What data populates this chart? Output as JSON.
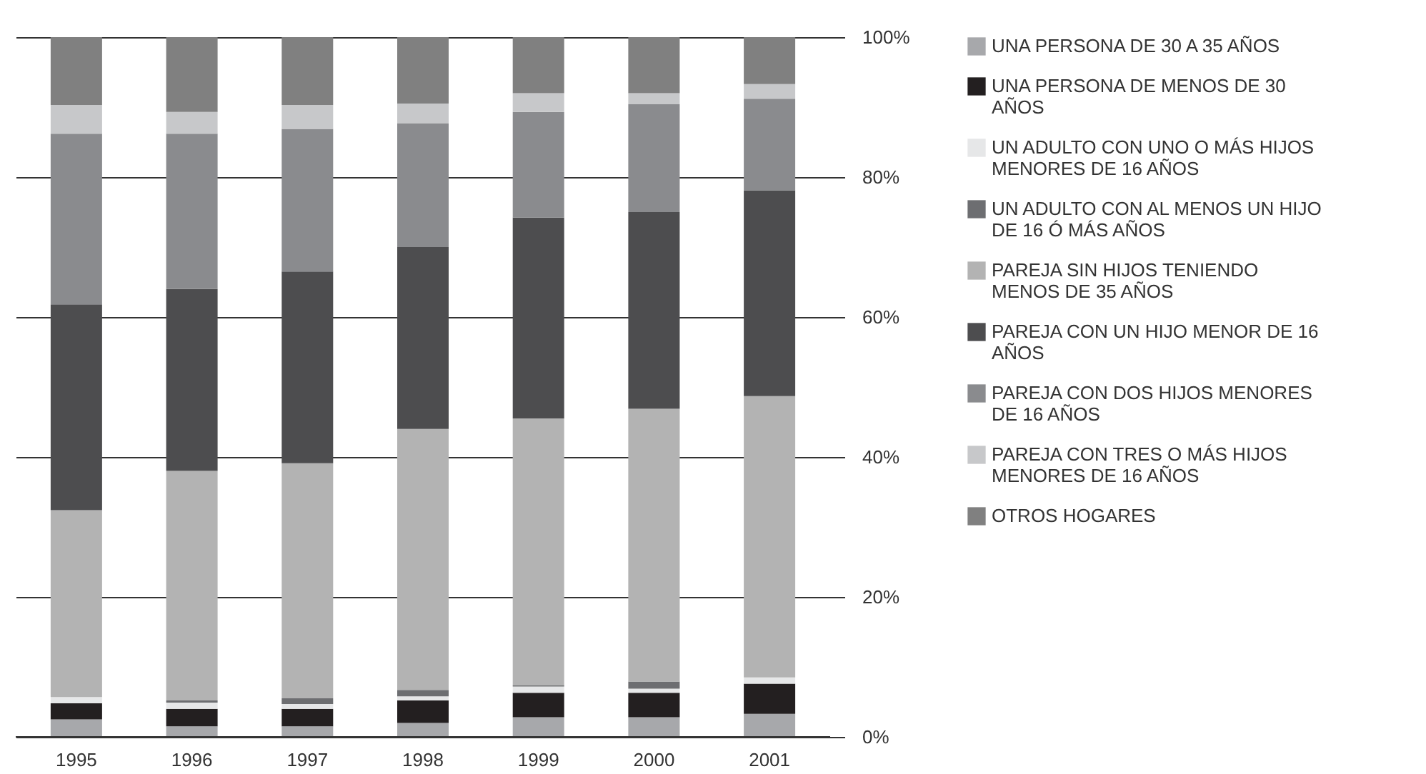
{
  "chart_data": {
    "type": "bar",
    "stacked": true,
    "categories": [
      "1995",
      "1996",
      "1997",
      "1998",
      "1999",
      "2000",
      "2001"
    ],
    "series": [
      {
        "name": "UNA PERSONA DE 30 A 35 AÑOS",
        "color": "#a7a8ab",
        "values": [
          2.5,
          1.5,
          1.5,
          2.0,
          2.8,
          2.8,
          3.3
        ]
      },
      {
        "name": "UNA PERSONA DE MENOS DE 30 AÑOS",
        "color": "#231f20",
        "values": [
          2.3,
          2.5,
          2.5,
          3.2,
          3.5,
          3.5,
          4.3
        ]
      },
      {
        "name": "UN ADULTO CON UNO O MÁS HIJOS MENORES DE 16 AÑOS",
        "color": "#e6e7e8",
        "values": [
          0.9,
          0.9,
          0.7,
          0.6,
          0.9,
          0.6,
          0.9
        ]
      },
      {
        "name": "UN ADULTO CON AL MENOS UN HIJO DE 16 Ó MÁS AÑOS",
        "color": "#6d6e71",
        "values": [
          0,
          0.3,
          0.8,
          0.9,
          0.2,
          1.0,
          0
        ]
      },
      {
        "name": "PAREJA SIN HIJOS TENIENDO MENOS DE 35 AÑOS",
        "color": "#b3b3b3",
        "values": [
          26.7,
          32.8,
          33.6,
          37.3,
          38.1,
          39.0,
          40.2
        ]
      },
      {
        "name": "PAREJA CON UN HIJO MENOR DE 16 AÑOS",
        "color": "#4d4d4f",
        "values": [
          29.4,
          26.0,
          27.4,
          26.0,
          28.7,
          28.1,
          29.4
        ]
      },
      {
        "name": "PAREJA CON DOS HIJOS MENORES DE 16 AÑOS",
        "color": "#8a8b8e",
        "values": [
          24.4,
          22.2,
          20.4,
          17.7,
          15.1,
          15.4,
          13.1
        ]
      },
      {
        "name": "PAREJA CON TRES O MÁS HIJOS MENORES DE 16 AÑOS",
        "color": "#c7c8ca",
        "values": [
          4.1,
          3.1,
          3.4,
          2.8,
          2.7,
          1.6,
          2.1
        ]
      },
      {
        "name": "OTROS HOGARES",
        "color": "#808080",
        "values": [
          9.7,
          10.7,
          9.7,
          9.5,
          8.0,
          8.0,
          6.7
        ]
      }
    ],
    "ylim": [
      0,
      100
    ],
    "yticks": [
      {
        "value": 0,
        "label": "0%"
      },
      {
        "value": 20,
        "label": "20%"
      },
      {
        "value": 40,
        "label": "40%"
      },
      {
        "value": 60,
        "label": "60%"
      },
      {
        "value": 80,
        "label": "80%"
      },
      {
        "value": 100,
        "label": "100%"
      }
    ],
    "grid": "y",
    "legend": "right"
  }
}
